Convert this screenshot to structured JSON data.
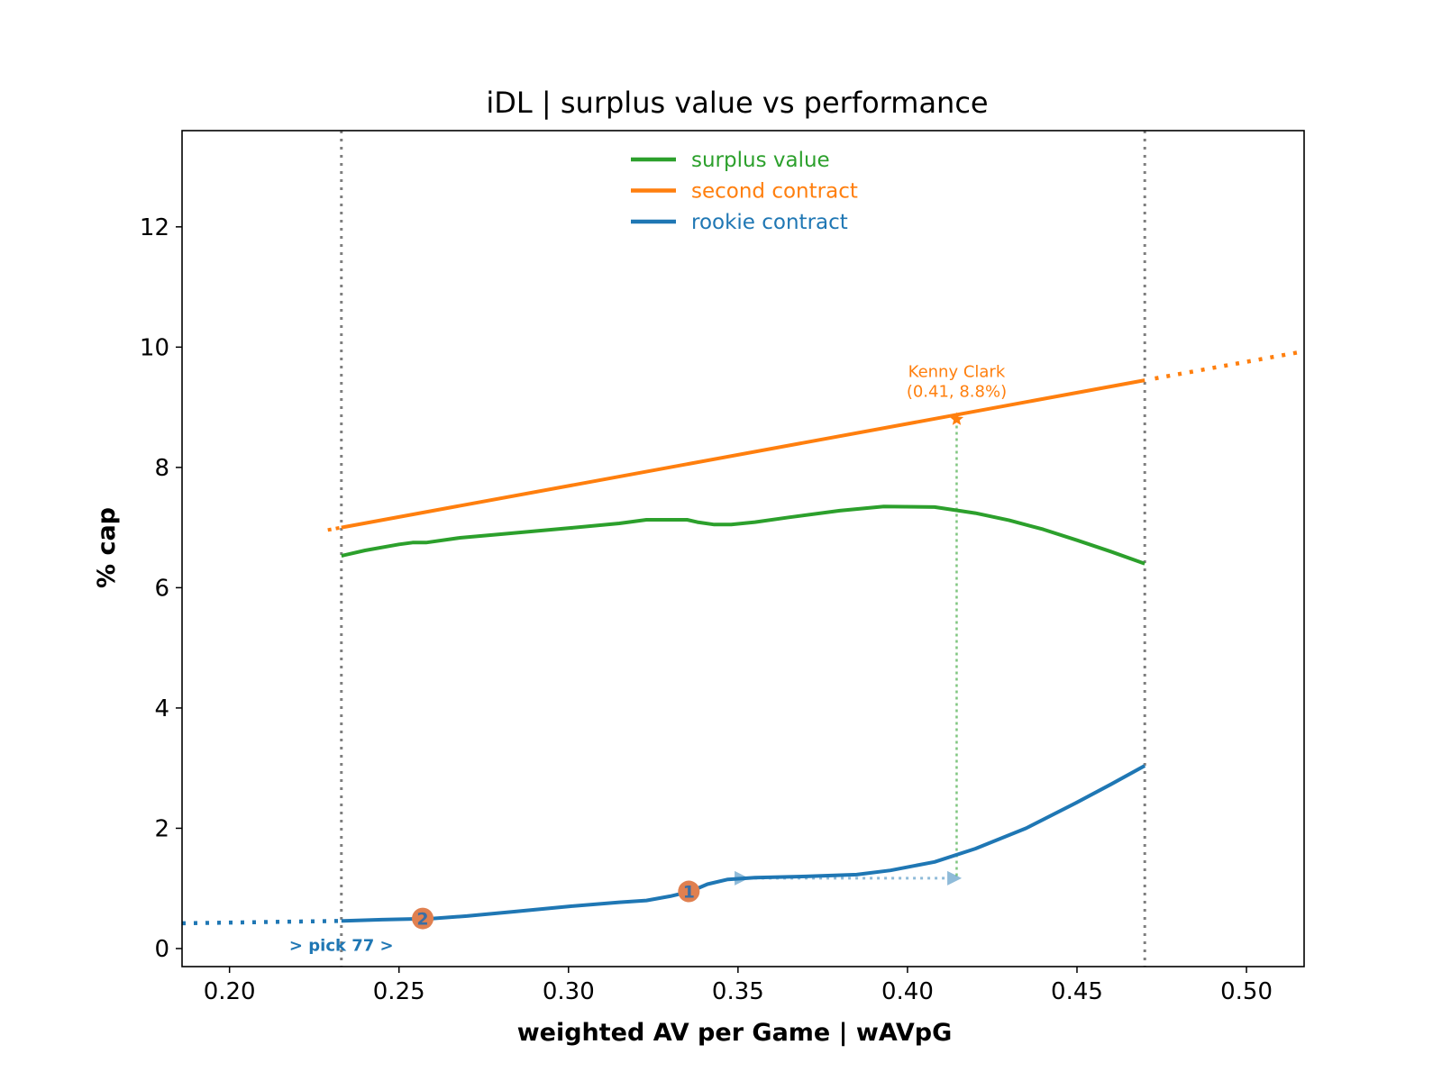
{
  "chart_data": {
    "type": "line",
    "title": "iDL | surplus value vs performance",
    "xlabel": "weighted AV per Game | wAVpG",
    "ylabel": "% cap",
    "xlim": [
      0.186,
      0.517
    ],
    "ylim": [
      -0.3,
      13.6
    ],
    "x_ticks": [
      0.2,
      0.25,
      0.3,
      0.35,
      0.4,
      0.45,
      0.5
    ],
    "x_tick_labels": [
      "0.20",
      "0.25",
      "0.30",
      "0.35",
      "0.40",
      "0.45",
      "0.50"
    ],
    "y_ticks": [
      0,
      2,
      4,
      6,
      8,
      10,
      12
    ],
    "y_tick_labels": [
      "0",
      "2",
      "4",
      "6",
      "8",
      "10",
      "12"
    ],
    "grid": false,
    "legend_position": "top-center",
    "range_bounds": [
      0.233,
      0.47
    ],
    "series": [
      {
        "name": "surplus value",
        "color": "#2ca02c",
        "points": [
          [
            0.233,
            6.53
          ],
          [
            0.24,
            6.62
          ],
          [
            0.25,
            6.72
          ],
          [
            0.254,
            6.75
          ],
          [
            0.258,
            6.75
          ],
          [
            0.268,
            6.83
          ],
          [
            0.28,
            6.89
          ],
          [
            0.3,
            6.99
          ],
          [
            0.315,
            7.07
          ],
          [
            0.323,
            7.13
          ],
          [
            0.335,
            7.13
          ],
          [
            0.338,
            7.09
          ],
          [
            0.343,
            7.05
          ],
          [
            0.348,
            7.05
          ],
          [
            0.355,
            7.09
          ],
          [
            0.365,
            7.17
          ],
          [
            0.38,
            7.28
          ],
          [
            0.393,
            7.35
          ],
          [
            0.408,
            7.34
          ],
          [
            0.42,
            7.24
          ],
          [
            0.43,
            7.12
          ],
          [
            0.44,
            6.97
          ],
          [
            0.45,
            6.79
          ],
          [
            0.46,
            6.6
          ],
          [
            0.47,
            6.4
          ]
        ]
      },
      {
        "name": "second contract",
        "color": "#ff7f0e",
        "points": [
          [
            0.233,
            7.0
          ],
          [
            0.47,
            9.45
          ]
        ],
        "extension_points": [
          [
            0.473,
            9.48
          ],
          [
            0.517,
            9.93
          ]
        ],
        "lead_points": [
          [
            0.229,
            6.96
          ],
          [
            0.233,
            7.0
          ]
        ]
      },
      {
        "name": "rookie contract",
        "color": "#1f77b4",
        "points": [
          [
            0.233,
            0.46
          ],
          [
            0.245,
            0.48
          ],
          [
            0.26,
            0.5
          ],
          [
            0.27,
            0.54
          ],
          [
            0.285,
            0.62
          ],
          [
            0.3,
            0.7
          ],
          [
            0.315,
            0.77
          ],
          [
            0.323,
            0.8
          ],
          [
            0.33,
            0.87
          ],
          [
            0.336,
            0.95
          ],
          [
            0.341,
            1.07
          ],
          [
            0.347,
            1.15
          ],
          [
            0.355,
            1.18
          ],
          [
            0.37,
            1.2
          ],
          [
            0.385,
            1.23
          ],
          [
            0.395,
            1.3
          ],
          [
            0.408,
            1.44
          ],
          [
            0.42,
            1.66
          ],
          [
            0.435,
            2.0
          ],
          [
            0.45,
            2.43
          ],
          [
            0.46,
            2.73
          ],
          [
            0.47,
            3.04
          ]
        ],
        "extension_points": [
          [
            0.186,
            0.42
          ],
          [
            0.233,
            0.46
          ]
        ]
      }
    ],
    "annotations": {
      "player": {
        "name_label": "Kenny Clark",
        "value_label": "(0.41, 8.8%)",
        "x": 0.4145,
        "y": 8.8,
        "color": "#ff7f0e"
      },
      "pick_label": "> pick 77 >",
      "pick_label_x": 0.233,
      "pick_label_y": 0.05,
      "arrow": {
        "x_start": 0.349,
        "x_end": 0.416,
        "y": 1.17,
        "color": "#1f77b4"
      },
      "markers": [
        {
          "label": "2",
          "x": 0.257,
          "y": 0.5
        },
        {
          "label": "1",
          "x": 0.3355,
          "y": 0.95
        }
      ]
    }
  }
}
